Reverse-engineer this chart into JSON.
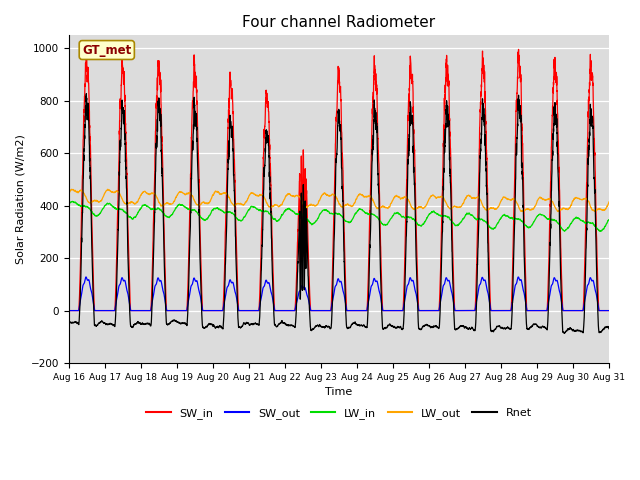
{
  "title": "Four channel Radiometer",
  "xlabel": "Time",
  "ylabel": "Solar Radiation (W/m2)",
  "ylim": [
    -200,
    1050
  ],
  "xlim": [
    0,
    15
  ],
  "background_color": "#dcdcdc",
  "label_box": "GT_met",
  "x_tick_labels": [
    "Aug 16",
    "Aug 17",
    "Aug 18",
    "Aug 19",
    "Aug 20",
    "Aug 21",
    "Aug 22",
    "Aug 23",
    "Aug 24",
    "Aug 25",
    "Aug 26",
    "Aug 27",
    "Aug 28",
    "Aug 29",
    "Aug 30",
    "Aug 31"
  ],
  "colors": {
    "SW_in": "#ff0000",
    "SW_out": "#0000ff",
    "LW_in": "#00dd00",
    "LW_out": "#ffa500",
    "Rnet": "#000000"
  },
  "yticks": [
    -200,
    0,
    200,
    400,
    600,
    800,
    1000
  ],
  "num_days": 15,
  "points_per_day": 288
}
